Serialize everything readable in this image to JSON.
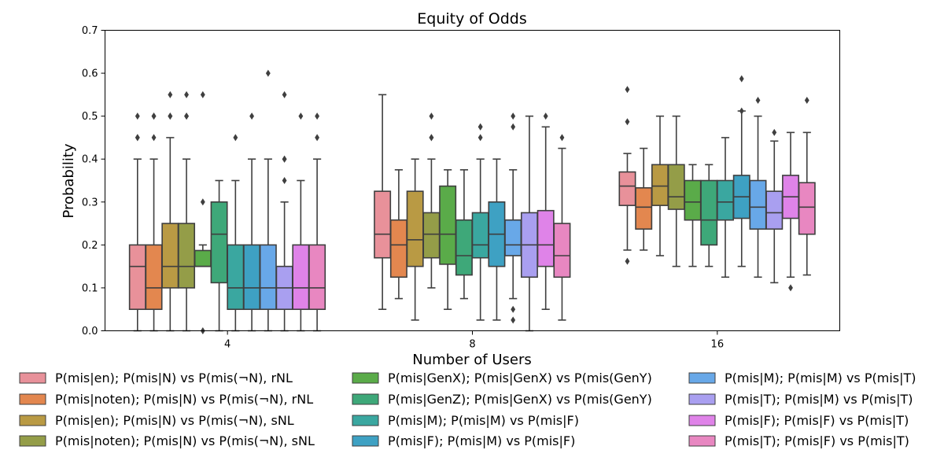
{
  "chart_data": {
    "type": "box",
    "title": "Equity of Odds",
    "xlabel": "Number of Users",
    "ylabel": "Probability",
    "ylim": [
      0,
      0.7
    ],
    "yticks": [
      "0.0",
      "0.1",
      "0.2",
      "0.3",
      "0.4",
      "0.5",
      "0.6",
      "0.7"
    ],
    "categories": [
      "4",
      "8",
      "16"
    ],
    "series": [
      {
        "name": "P(mis|en); P(mis|N) vs P(mis(¬N), rNL",
        "color": "#e8919a",
        "boxes": [
          {
            "q1": 0.05,
            "median": 0.15,
            "q3": 0.2,
            "whislo": 0.0,
            "whishi": 0.4,
            "fliers": [
              0.45,
              0.45,
              0.5
            ]
          },
          {
            "q1": 0.17,
            "median": 0.225,
            "q3": 0.325,
            "whislo": 0.05,
            "whishi": 0.55,
            "fliers": []
          },
          {
            "q1": 0.292,
            "median": 0.337,
            "q3": 0.37,
            "whislo": 0.188,
            "whishi": 0.413,
            "fliers": [
              0.162,
              0.487,
              0.562
            ]
          }
        ]
      },
      {
        "name": "P(mis|noten); P(mis|N) vs P(mis(¬N), rNL",
        "color": "#e3874f",
        "boxes": [
          {
            "q1": 0.05,
            "median": 0.1,
            "q3": 0.2,
            "whislo": 0.0,
            "whishi": 0.4,
            "fliers": [
              0.45,
              0.5,
              0.5
            ]
          },
          {
            "q1": 0.125,
            "median": 0.2,
            "q3": 0.258,
            "whislo": 0.075,
            "whishi": 0.375,
            "fliers": []
          },
          {
            "q1": 0.237,
            "median": 0.288,
            "q3": 0.333,
            "whislo": 0.188,
            "whishi": 0.425,
            "fliers": []
          }
        ]
      },
      {
        "name": "P(mis|en); P(mis|N) vs P(mis(¬N), sNL",
        "color": "#b99a44",
        "boxes": [
          {
            "q1": 0.1,
            "median": 0.15,
            "q3": 0.25,
            "whislo": 0.0,
            "whishi": 0.45,
            "fliers": [
              0.5,
              0.5,
              0.55
            ]
          },
          {
            "q1": 0.15,
            "median": 0.212,
            "q3": 0.325,
            "whislo": 0.025,
            "whishi": 0.4,
            "fliers": []
          },
          {
            "q1": 0.292,
            "median": 0.337,
            "q3": 0.387,
            "whislo": 0.175,
            "whishi": 0.5,
            "fliers": []
          }
        ]
      },
      {
        "name": "P(mis|noten); P(mis|N) vs P(mis(¬N), sNL",
        "color": "#949d48",
        "boxes": [
          {
            "q1": 0.1,
            "median": 0.15,
            "q3": 0.25,
            "whislo": 0.0,
            "whishi": 0.4,
            "fliers": [
              0.5,
              0.5,
              0.55
            ]
          },
          {
            "q1": 0.17,
            "median": 0.225,
            "q3": 0.275,
            "whislo": 0.1,
            "whishi": 0.4,
            "fliers": [
              0.45,
              0.45,
              0.5
            ]
          },
          {
            "q1": 0.283,
            "median": 0.312,
            "q3": 0.387,
            "whislo": 0.15,
            "whishi": 0.5,
            "fliers": []
          }
        ]
      },
      {
        "name": "P(mis|GenX); P(mis|GenX) vs P(mis(GenY)",
        "color": "#5aab49",
        "boxes": [
          {
            "q1": 0.15,
            "median": 0.15,
            "q3": 0.187,
            "whislo": 0.15,
            "whishi": 0.2,
            "fliers": [
              0.0,
              0.3,
              0.55
            ]
          },
          {
            "q1": 0.155,
            "median": 0.225,
            "q3": 0.337,
            "whislo": 0.05,
            "whishi": 0.375,
            "fliers": []
          },
          {
            "q1": 0.258,
            "median": 0.3,
            "q3": 0.35,
            "whislo": 0.15,
            "whishi": 0.387,
            "fliers": []
          }
        ]
      },
      {
        "name": "P(mis|GenZ); P(mis|GenX) vs P(mis(GenY)",
        "color": "#3ea879",
        "boxes": [
          {
            "q1": 0.112,
            "median": 0.225,
            "q3": 0.3,
            "whislo": 0.0,
            "whishi": 0.35,
            "fliers": []
          },
          {
            "q1": 0.13,
            "median": 0.175,
            "q3": 0.258,
            "whislo": 0.075,
            "whishi": 0.375,
            "fliers": []
          },
          {
            "q1": 0.2,
            "median": 0.258,
            "q3": 0.35,
            "whislo": 0.15,
            "whishi": 0.387,
            "fliers": []
          }
        ]
      },
      {
        "name": "P(mis|M); P(mis|M) vs P(mis|F)",
        "color": "#3aa7a0",
        "boxes": [
          {
            "q1": 0.05,
            "median": 0.1,
            "q3": 0.2,
            "whislo": 0.0,
            "whishi": 0.35,
            "fliers": [
              0.45
            ]
          },
          {
            "q1": 0.17,
            "median": 0.2,
            "q3": 0.275,
            "whislo": 0.025,
            "whishi": 0.4,
            "fliers": [
              0.45,
              0.475,
              0.475
            ]
          },
          {
            "q1": 0.258,
            "median": 0.3,
            "q3": 0.35,
            "whislo": 0.125,
            "whishi": 0.45,
            "fliers": []
          }
        ]
      },
      {
        "name": "P(mis|F); P(mis|M) vs P(mis|F)",
        "color": "#3ea1c3",
        "boxes": [
          {
            "q1": 0.05,
            "median": 0.1,
            "q3": 0.2,
            "whislo": 0.0,
            "whishi": 0.4,
            "fliers": [
              0.5
            ]
          },
          {
            "q1": 0.15,
            "median": 0.225,
            "q3": 0.3,
            "whislo": 0.025,
            "whishi": 0.4,
            "fliers": []
          },
          {
            "q1": 0.262,
            "median": 0.312,
            "q3": 0.362,
            "whislo": 0.15,
            "whishi": 0.512,
            "fliers": [
              0.512,
              0.587
            ]
          }
        ]
      },
      {
        "name": "P(mis|M); P(mis|M) vs P(mis|T)",
        "color": "#68a8e8",
        "boxes": [
          {
            "q1": 0.05,
            "median": 0.1,
            "q3": 0.2,
            "whislo": 0.0,
            "whishi": 0.4,
            "fliers": [
              0.6
            ]
          },
          {
            "q1": 0.175,
            "median": 0.2,
            "q3": 0.258,
            "whislo": 0.075,
            "whishi": 0.375,
            "fliers": [
              0.025,
              0.05,
              0.475,
              0.5
            ]
          },
          {
            "q1": 0.237,
            "median": 0.288,
            "q3": 0.35,
            "whislo": 0.125,
            "whishi": 0.5,
            "fliers": [
              0.537
            ]
          }
        ]
      },
      {
        "name": "P(mis|T); P(mis|M) vs P(mis|T)",
        "color": "#a99ff0",
        "boxes": [
          {
            "q1": 0.05,
            "median": 0.1,
            "q3": 0.15,
            "whislo": 0.0,
            "whishi": 0.3,
            "fliers": [
              0.35,
              0.4,
              0.4,
              0.55
            ]
          },
          {
            "q1": 0.125,
            "median": 0.2,
            "q3": 0.275,
            "whislo": 0.0,
            "whishi": 0.5,
            "fliers": []
          },
          {
            "q1": 0.237,
            "median": 0.275,
            "q3": 0.325,
            "whislo": 0.112,
            "whishi": 0.442,
            "fliers": [
              0.462
            ]
          }
        ]
      },
      {
        "name": "P(mis|F); P(mis|F) vs P(mis|T)",
        "color": "#df83e8",
        "boxes": [
          {
            "q1": 0.05,
            "median": 0.1,
            "q3": 0.2,
            "whislo": 0.0,
            "whishi": 0.35,
            "fliers": [
              0.5
            ]
          },
          {
            "q1": 0.15,
            "median": 0.2,
            "q3": 0.28,
            "whislo": 0.05,
            "whishi": 0.475,
            "fliers": [
              0.5
            ]
          },
          {
            "q1": 0.262,
            "median": 0.312,
            "q3": 0.362,
            "whislo": 0.125,
            "whishi": 0.462,
            "fliers": [
              0.1
            ]
          }
        ]
      },
      {
        "name": "P(mis|T); P(mis|F) vs P(mis|T)",
        "color": "#e887c1",
        "boxes": [
          {
            "q1": 0.05,
            "median": 0.1,
            "q3": 0.2,
            "whislo": 0.0,
            "whishi": 0.4,
            "fliers": [
              0.45,
              0.5
            ]
          },
          {
            "q1": 0.125,
            "median": 0.175,
            "q3": 0.25,
            "whislo": 0.025,
            "whishi": 0.425,
            "fliers": [
              0.45
            ]
          },
          {
            "q1": 0.225,
            "median": 0.288,
            "q3": 0.345,
            "whislo": 0.13,
            "whishi": 0.462,
            "fliers": [
              0.537
            ]
          }
        ]
      }
    ],
    "legend": {
      "position": "bottom",
      "columns": 3
    },
    "grid": false
  }
}
